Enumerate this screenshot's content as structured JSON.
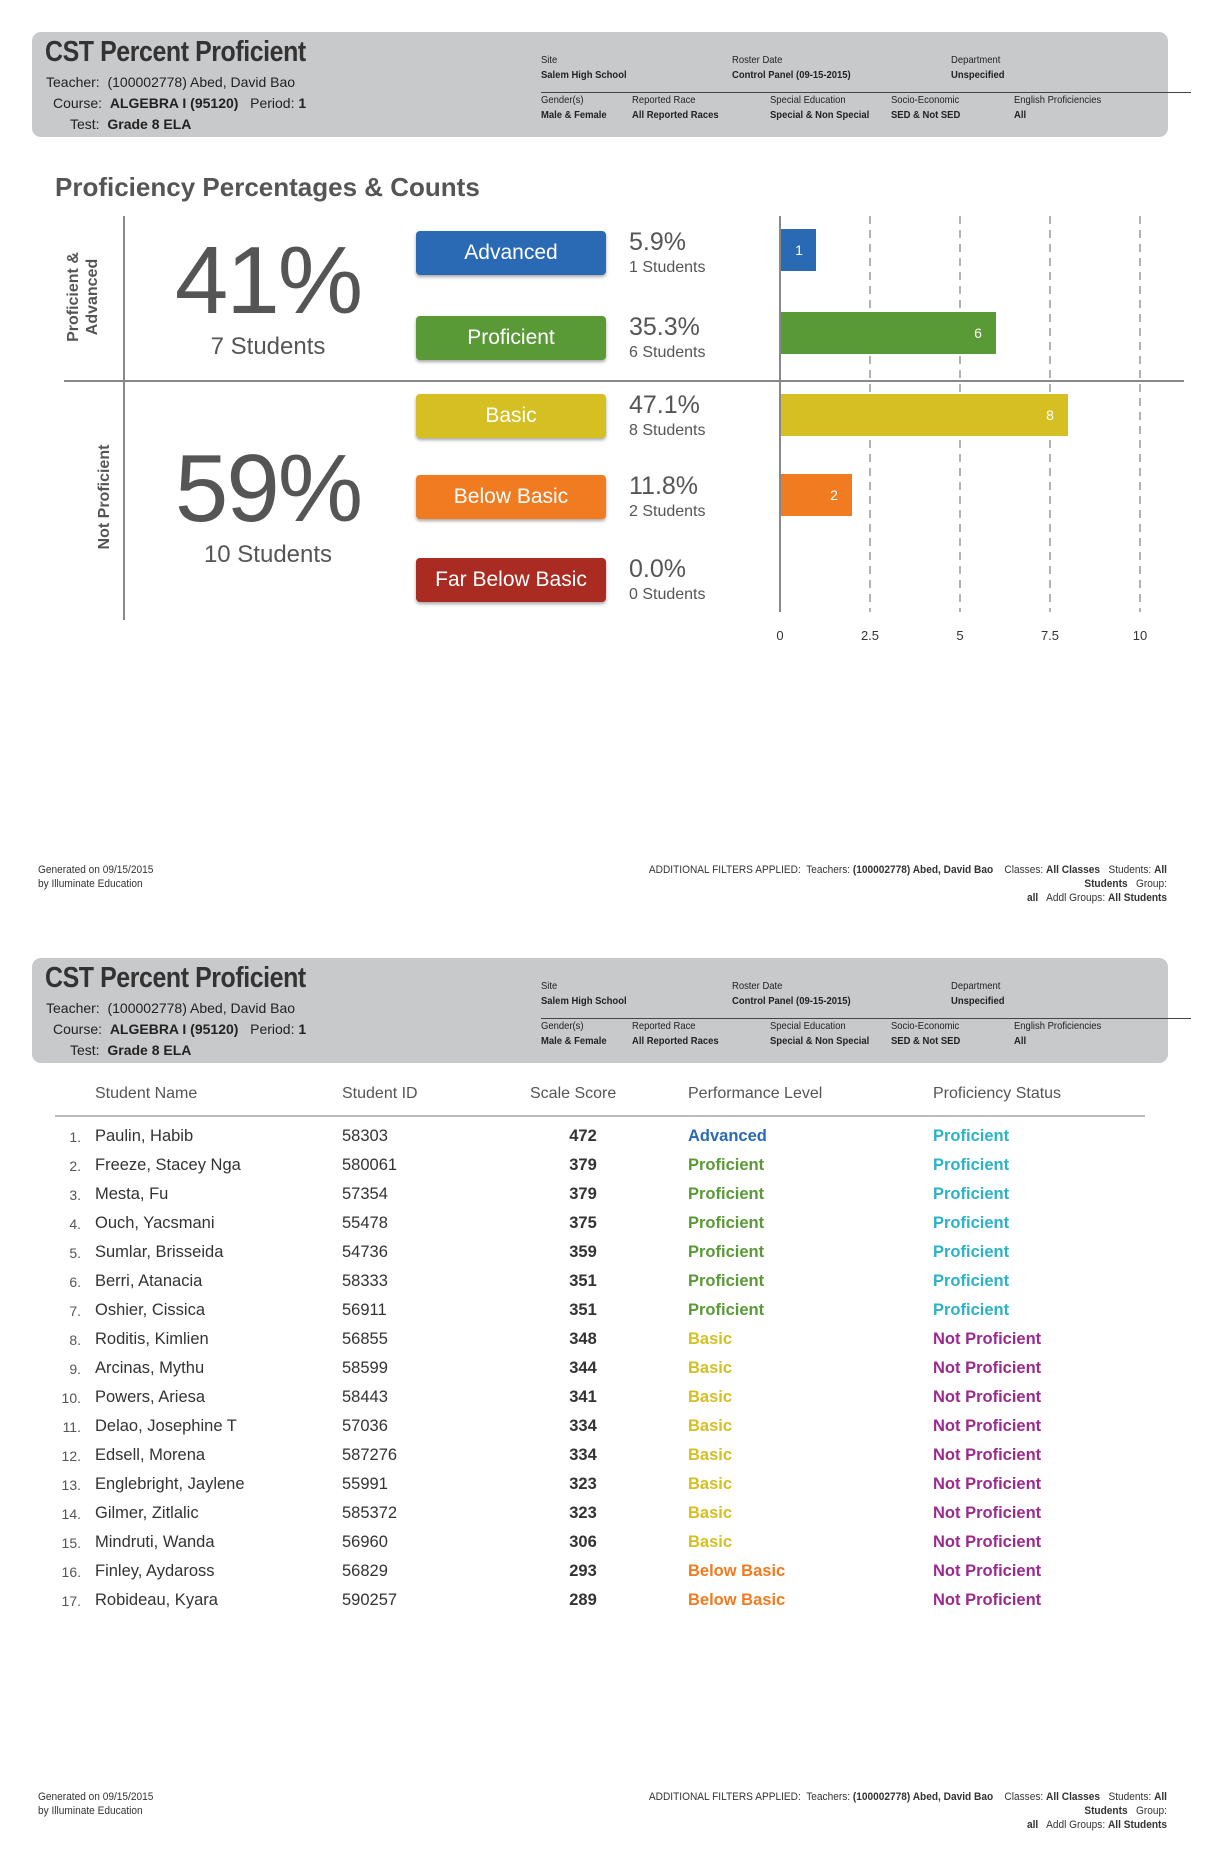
{
  "header": {
    "title": "CST Percent Proficient",
    "teacher_label": "Teacher:",
    "teacher": "(100002778) Abed, David Bao",
    "course_label": "Course:",
    "course": "ALGEBRA I (95120)",
    "period_label": "Period:",
    "period": "1",
    "test_label": "Test:",
    "test": "Grade 8 ELA",
    "site_label": "Site",
    "site": "Salem High School",
    "roster_label": "Roster Date",
    "roster": "Control Panel (09-15-2015)",
    "dept_label": "Department",
    "dept": "Unspecified",
    "gender_label": "Gender(s)",
    "gender": "Male & Female",
    "race_label": "Reported Race",
    "race": "All Reported Races",
    "sped_label": "Special Education",
    "sped": "Special & Non Special",
    "ses_label": "Socio-Economic",
    "ses": "SED & Not SED",
    "elp_label": "English Proficiencies",
    "elp": "All"
  },
  "summary": {
    "section_title": "Proficiency Percentages & Counts",
    "group_top_label_1": "Proficient &",
    "group_top_label_2": "Advanced",
    "group_bottom_label": "Not Proficient",
    "top_pct": "41%",
    "top_students": "7 Students",
    "bottom_pct": "59%",
    "bottom_students": "10 Students",
    "levels": [
      {
        "label": "Advanced",
        "pct": "5.9%",
        "students": "1 Students",
        "color": "#2a6ab5"
      },
      {
        "label": "Proficient",
        "pct": "35.3%",
        "students": "6 Students",
        "color": "#5a9a36"
      },
      {
        "label": "Basic",
        "pct": "47.1%",
        "students": "8 Students",
        "color": "#d6bf22"
      },
      {
        "label": "Below Basic",
        "pct": "11.8%",
        "students": "2 Students",
        "color": "#f07b20"
      },
      {
        "label": "Far Below Basic",
        "pct": "0.0%",
        "students": "0 Students",
        "color": "#aa2b22"
      }
    ]
  },
  "chart_data": {
    "type": "bar",
    "orientation": "horizontal",
    "categories": [
      "Advanced",
      "Proficient",
      "Basic",
      "Below Basic",
      "Far Below Basic"
    ],
    "values": [
      1,
      6,
      8,
      2,
      0
    ],
    "colors": [
      "#2a6ab5",
      "#5a9a36",
      "#d6bf22",
      "#f07b20",
      "#aa2b22"
    ],
    "xlim": [
      0,
      10
    ],
    "xticks": [
      "0",
      "2.5",
      "5",
      "7.5",
      "10"
    ],
    "xtick_values": [
      0,
      2.5,
      5,
      7.5,
      10
    ],
    "grid": "dashed vertical"
  },
  "footer": {
    "generated_1": "Generated on 09/15/2015",
    "generated_2": "by Illuminate Education",
    "filters_prefix": "ADDITIONAL FILTERS APPLIED:",
    "teachers_label": "Teachers:",
    "teachers": "(100002778) Abed, David Bao",
    "classes_label": "Classes:",
    "classes": "All Classes",
    "students_label": "Students:",
    "students": "All Students",
    "group_label": "Group:",
    "group": "all",
    "addl_label": "Addl Groups:",
    "addl": "All Students"
  },
  "table": {
    "headers": [
      "Student Name",
      "Student ID",
      "Scale Score",
      "Performance Level",
      "Proficiency Status"
    ],
    "level_colors": {
      "Advanced": "#2a6ab5",
      "Proficient": "#5a9a36",
      "Basic": "#d6bf22",
      "Below Basic": "#f07b20"
    },
    "status_colors": {
      "Proficient": "#2bb2c8",
      "Not Proficient": "#9b2a8e"
    },
    "rows": [
      {
        "num": "1.",
        "name": "Paulin, Habib",
        "id": "58303",
        "score": "472",
        "level": "Advanced",
        "status": "Proficient"
      },
      {
        "num": "2.",
        "name": "Freeze, Stacey Nga",
        "id": "580061",
        "score": "379",
        "level": "Proficient",
        "status": "Proficient"
      },
      {
        "num": "3.",
        "name": "Mesta, Fu",
        "id": "57354",
        "score": "379",
        "level": "Proficient",
        "status": "Proficient"
      },
      {
        "num": "4.",
        "name": "Ouch, Yacsmani",
        "id": "55478",
        "score": "375",
        "level": "Proficient",
        "status": "Proficient"
      },
      {
        "num": "5.",
        "name": "Sumlar, Brisseida",
        "id": "54736",
        "score": "359",
        "level": "Proficient",
        "status": "Proficient"
      },
      {
        "num": "6.",
        "name": "Berri, Atanacia",
        "id": "58333",
        "score": "351",
        "level": "Proficient",
        "status": "Proficient"
      },
      {
        "num": "7.",
        "name": "Oshier, Cissica",
        "id": "56911",
        "score": "351",
        "level": "Proficient",
        "status": "Proficient"
      },
      {
        "num": "8.",
        "name": "Roditis, Kimlien",
        "id": "56855",
        "score": "348",
        "level": "Basic",
        "status": "Not Proficient"
      },
      {
        "num": "9.",
        "name": "Arcinas, Mythu",
        "id": "58599",
        "score": "344",
        "level": "Basic",
        "status": "Not Proficient"
      },
      {
        "num": "10.",
        "name": "Powers, Ariesa",
        "id": "58443",
        "score": "341",
        "level": "Basic",
        "status": "Not Proficient"
      },
      {
        "num": "11.",
        "name": "Delao, Josephine T",
        "id": "57036",
        "score": "334",
        "level": "Basic",
        "status": "Not Proficient"
      },
      {
        "num": "12.",
        "name": "Edsell, Morena",
        "id": "587276",
        "score": "334",
        "level": "Basic",
        "status": "Not Proficient"
      },
      {
        "num": "13.",
        "name": "Englebright, Jaylene",
        "id": "55991",
        "score": "323",
        "level": "Basic",
        "status": "Not Proficient"
      },
      {
        "num": "14.",
        "name": "Gilmer, Zitlalic",
        "id": "585372",
        "score": "323",
        "level": "Basic",
        "status": "Not Proficient"
      },
      {
        "num": "15.",
        "name": "Mindruti, Wanda",
        "id": "56960",
        "score": "306",
        "level": "Basic",
        "status": "Not Proficient"
      },
      {
        "num": "16.",
        "name": "Finley, Aydaross",
        "id": "56829",
        "score": "293",
        "level": "Below Basic",
        "status": "Not Proficient"
      },
      {
        "num": "17.",
        "name": "Robideau, Kyara",
        "id": "590257",
        "score": "289",
        "level": "Below Basic",
        "status": "Not Proficient"
      }
    ]
  }
}
